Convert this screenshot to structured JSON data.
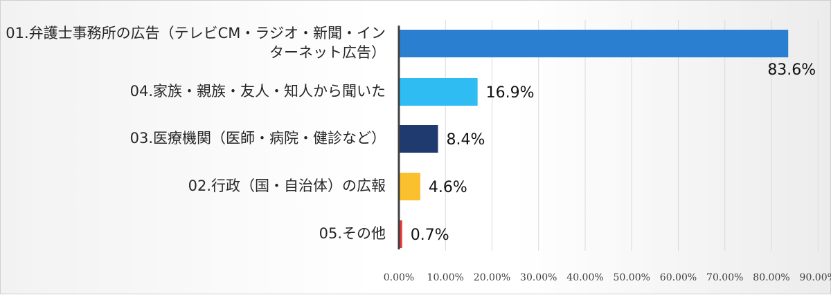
{
  "chart_data": {
    "type": "bar",
    "orientation": "horizontal",
    "title": "",
    "xlabel": "",
    "ylabel": "",
    "grid": true,
    "legend": "none",
    "xlim": [
      0,
      90
    ],
    "x_ticks": [
      "0.00%",
      "10.00%",
      "20.00%",
      "30.00%",
      "40.00%",
      "50.00%",
      "60.00%",
      "70.00%",
      "80.00%",
      "90.00%"
    ],
    "categories": [
      [
        "01.弁護士事務所の広告（テレビCM・ラジオ・新聞・イン",
        "ターネット広告）"
      ],
      [
        "04.家族・親族・友人・知人から聞いた"
      ],
      [
        "03.医療機関（医師・病院・健診など）"
      ],
      [
        "02.行政（国・自治体）の広報"
      ],
      [
        "05.その他"
      ]
    ],
    "values": [
      83.6,
      16.9,
      8.4,
      4.6,
      0.7
    ],
    "value_labels": [
      "83.6%",
      "16.9%",
      "8.4%",
      "4.6%",
      "0.7%"
    ],
    "colors": [
      "#2a7fd0",
      "#2ebcf2",
      "#1f3a6e",
      "#fbc02d",
      "#e53935"
    ]
  }
}
